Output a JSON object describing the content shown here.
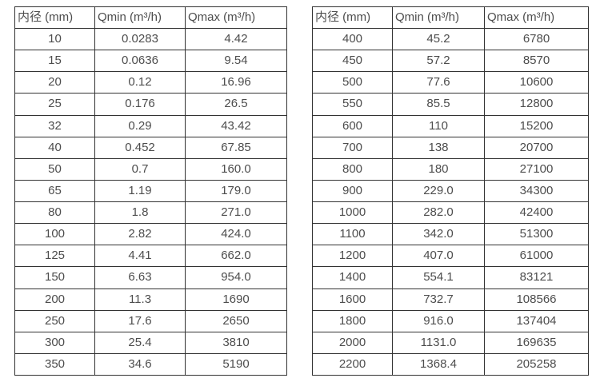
{
  "colors": {
    "background": "#ffffff",
    "table_border": "#333333",
    "text": "#4d4d4d"
  },
  "tables": [
    {
      "name": "flow-rate-table-small-diameters",
      "headers": [
        "内径 (mm)",
        "Qmin (m³/h)",
        "Qmax (m³/h)"
      ],
      "rows": [
        [
          "10",
          "0.0283",
          "4.42"
        ],
        [
          "15",
          "0.0636",
          "9.54"
        ],
        [
          "20",
          "0.12",
          "16.96"
        ],
        [
          "25",
          "0.176",
          "26.5"
        ],
        [
          "32",
          "0.29",
          "43.42"
        ],
        [
          "40",
          "0.452",
          "67.85"
        ],
        [
          "50",
          "0.7",
          "160.0"
        ],
        [
          "65",
          "1.19",
          "179.0"
        ],
        [
          "80",
          "1.8",
          "271.0"
        ],
        [
          "100",
          "2.82",
          "424.0"
        ],
        [
          "125",
          "4.41",
          "662.0"
        ],
        [
          "150",
          "6.63",
          "954.0"
        ],
        [
          "200",
          "11.3",
          "1690"
        ],
        [
          "250",
          "17.6",
          "2650"
        ],
        [
          "300",
          "25.4",
          "3810"
        ],
        [
          "350",
          "34.6",
          "5190"
        ]
      ]
    },
    {
      "name": "flow-rate-table-large-diameters",
      "headers": [
        "内径 (mm)",
        "Qmin (m³/h)",
        "Qmax (m³/h)"
      ],
      "rows": [
        [
          "400",
          "45.2",
          "6780"
        ],
        [
          "450",
          "57.2",
          "8570"
        ],
        [
          "500",
          "77.6",
          "10600"
        ],
        [
          "550",
          "85.5",
          "12800"
        ],
        [
          "600",
          "110",
          "15200"
        ],
        [
          "700",
          "138",
          "20700"
        ],
        [
          "800",
          "180",
          "27100"
        ],
        [
          "900",
          "229.0",
          "34300"
        ],
        [
          "1000",
          "282.0",
          "42400"
        ],
        [
          "1100",
          "342.0",
          "51300"
        ],
        [
          "1200",
          "407.0",
          "61000"
        ],
        [
          "1400",
          "554.1",
          "83121"
        ],
        [
          "1600",
          "732.7",
          "108566"
        ],
        [
          "1800",
          "916.0",
          "137404"
        ],
        [
          "2000",
          "1131.0",
          "169635"
        ],
        [
          "2200",
          "1368.4",
          "205258"
        ]
      ]
    }
  ]
}
